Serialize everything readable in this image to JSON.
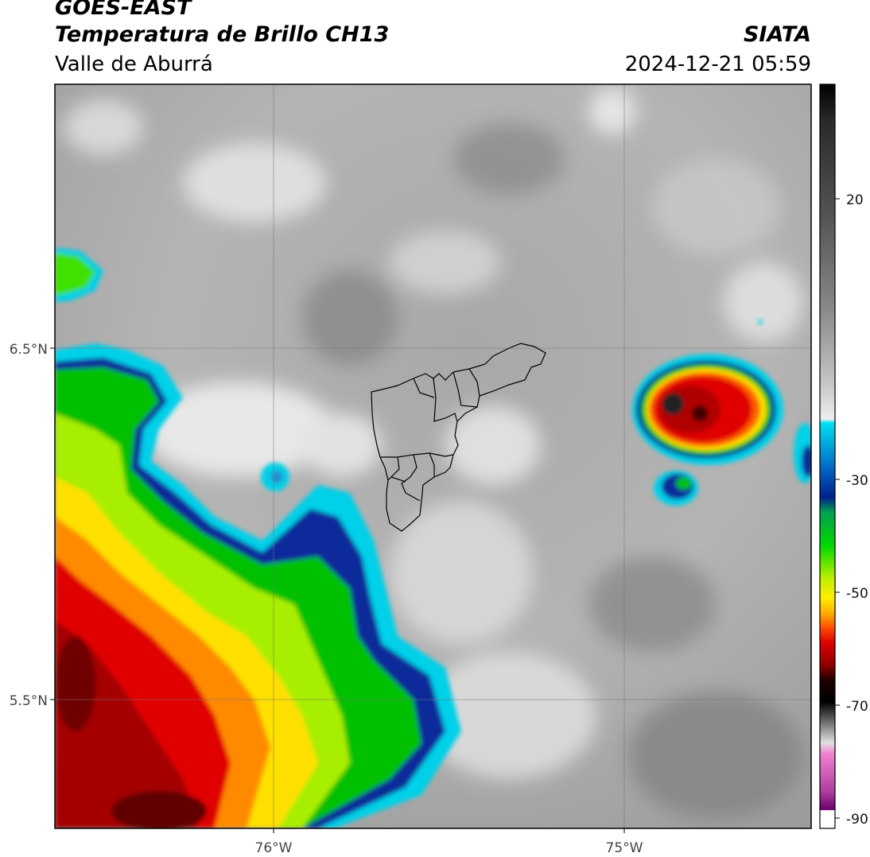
{
  "header": {
    "satellite": "GOES-EAST",
    "product": "Temperatura de Brillo CH13",
    "region": "Valle de Aburrá",
    "brand": "SIATA",
    "datetime": "2024-12-21 05:59"
  },
  "map": {
    "lat_ticks": [
      "6.5°N",
      "5.5°N"
    ],
    "lon_ticks": [
      "76°W",
      "75°W"
    ]
  },
  "colorbar": {
    "ticks": [
      "20",
      "-30",
      "-50",
      "-70",
      "-90"
    ],
    "colors": {
      "warm_gray_top": "#1a1a1a",
      "gray_mid": "#8a8a8a",
      "light": "#f2f2f2",
      "cyan": "#00d4e8",
      "blue": "#0a2a9a",
      "green": "#00c800",
      "lime": "#b4f000",
      "yellow": "#ffe600",
      "orange": "#ff7800",
      "red": "#e00000",
      "darkred": "#5a0000",
      "black": "#000000",
      "pink": "#e070c0",
      "purple": "#801880"
    }
  }
}
